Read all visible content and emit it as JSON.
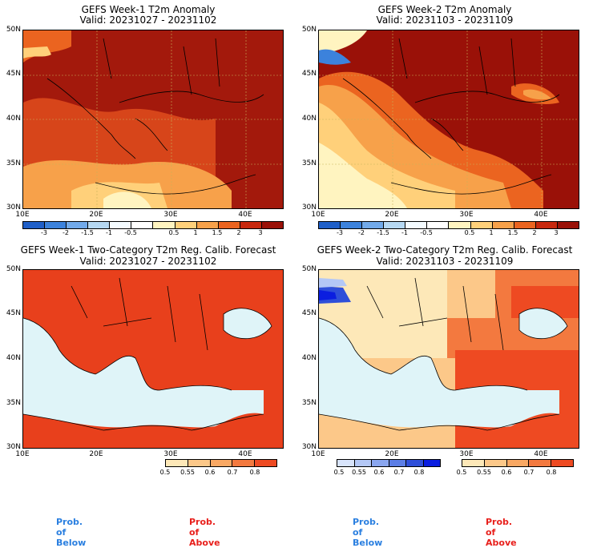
{
  "panels": [
    {
      "title": "GEFS Week-1 T2m Anomaly",
      "valid": "Valid: 20231027 - 20231102"
    },
    {
      "title": "GEFS Week-2 T2m Anomaly",
      "valid": "Valid: 20231103 - 20231109"
    },
    {
      "title": "GEFS Week-1 Two-Category T2m Reg. Calib. Forecast",
      "valid": "Valid: 20231027 - 20231102"
    },
    {
      "title": "GEFS Week-2 Two-Category T2m Reg. Calib. Forecast",
      "valid": "Valid: 20231103 - 20231109"
    }
  ],
  "lat_labels": [
    "50N",
    "45N",
    "40N",
    "35N",
    "30N"
  ],
  "lon_labels": [
    "10E",
    "20E",
    "30E",
    "40E"
  ],
  "anomaly_scale": {
    "labels": [
      "-3",
      "-2",
      "-1.5",
      "-1",
      "-0.5",
      "0.5",
      "1",
      "1.5",
      "2",
      "3"
    ],
    "colors": [
      "#1f5fc8",
      "#3c82dc",
      "#72aaea",
      "#b6d8f2",
      "#f4fbff",
      "#fff4c0",
      "#ffd07a",
      "#f7a14a",
      "#eb6420",
      "#c8280e",
      "#9a1108"
    ]
  },
  "prob_above_scale": {
    "labels": [
      "0.5",
      "0.55",
      "0.6",
      "0.7",
      "0.8"
    ],
    "colors": [
      "#fde8b8",
      "#fcc889",
      "#f9a863",
      "#f3793f",
      "#ee4a22"
    ]
  },
  "prob_below_scale": {
    "labels": [
      "0.5",
      "0.55",
      "0.6",
      "0.7",
      "0.8"
    ],
    "colors": [
      "#d8e4fb",
      "#b4c8f6",
      "#8aa6ef",
      "#5c7ee6",
      "#2f4fd9",
      "#0b1ee0"
    ]
  },
  "prob_labels": {
    "below": "Prob. of Below",
    "above": "Prob. of Above"
  },
  "colors": {
    "sea_prob": "#dff4f8",
    "land_red": "#e8401c",
    "anom_dark": "#a3190c",
    "anom_mid": "#d7451a"
  }
}
